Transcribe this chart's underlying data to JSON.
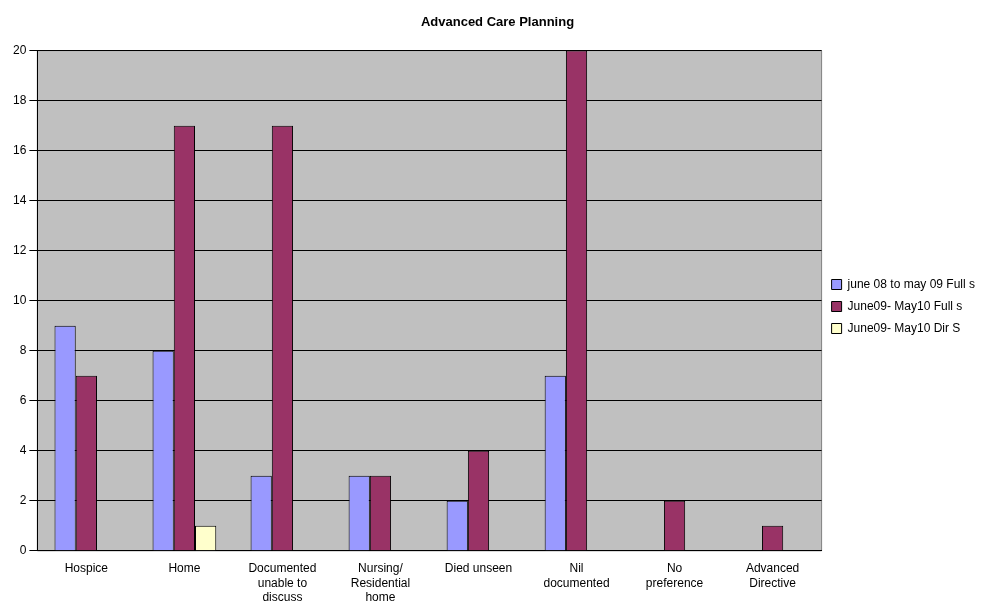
{
  "chart_data": {
    "type": "bar",
    "title": "Advanced Care Planning",
    "categories": [
      "Hospice",
      "Home",
      "Documented unable to discuss",
      "Nursing/ Residential home",
      "Died unseen",
      "Nil documented",
      "No preference",
      "Advanced Directive"
    ],
    "series": [
      {
        "name": "june 08 to may 09 Full s",
        "color": "#9999ff",
        "values": [
          9,
          8,
          3,
          3,
          2,
          7,
          0,
          0
        ]
      },
      {
        "name": "June09- May10 Full s",
        "color": "#993366",
        "values": [
          7,
          17,
          17,
          3,
          4,
          20,
          2,
          1
        ]
      },
      {
        "name": "June09- May10 Dir S",
        "color": "#ffffcc",
        "values": [
          null,
          1,
          null,
          null,
          null,
          null,
          null,
          null
        ]
      }
    ],
    "ylim": [
      0,
      20
    ],
    "yticks": [
      0,
      2,
      4,
      6,
      8,
      10,
      12,
      14,
      16,
      18,
      20
    ],
    "grid": "y",
    "legend": "right"
  }
}
